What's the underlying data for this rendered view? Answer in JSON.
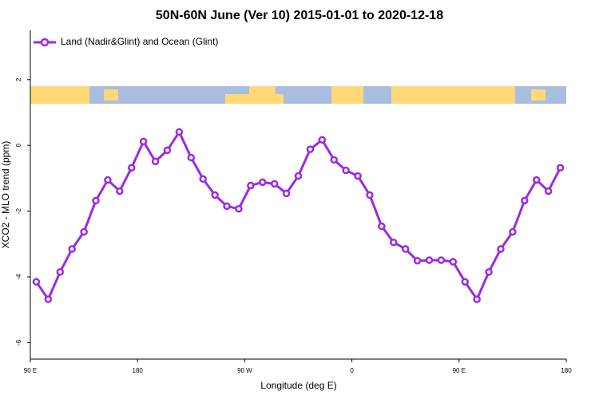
{
  "chart_data": {
    "type": "line",
    "title": "50N-60N June (Ver 10)   2015-01-01 to 2020-12-18",
    "x_label": "Longitude (deg E)",
    "y_label": "XCO2 - MLO trend (ppm)",
    "x": [
      95,
      105,
      115,
      125,
      135,
      145,
      155,
      165,
      175,
      185,
      195,
      205,
      215,
      225,
      235,
      245,
      255,
      265,
      275,
      285,
      295,
      305,
      315,
      325,
      335,
      345,
      355,
      365,
      375,
      385,
      395,
      405,
      415,
      425,
      435,
      445,
      455,
      465,
      475,
      485,
      495,
      505,
      515,
      525,
      535
    ],
    "series": [
      {
        "name": "Land (Nadir&Glint) and Ocean (Glint)",
        "color": "#9a2be2",
        "values": [
          -4.15,
          -4.68,
          -3.85,
          -3.15,
          -2.63,
          -1.68,
          -1.05,
          -1.39,
          -0.68,
          0.12,
          -0.49,
          -0.15,
          0.41,
          -0.37,
          -1.02,
          -1.51,
          -1.85,
          -1.93,
          -1.22,
          -1.12,
          -1.17,
          -1.46,
          -0.93,
          -0.12,
          0.17,
          -0.44,
          -0.76,
          -0.93,
          -1.51,
          -2.46,
          -2.95,
          -3.15,
          -3.51,
          -3.49,
          -3.49,
          -3.54,
          -4.15,
          -4.68,
          -3.85,
          -3.15,
          -2.63,
          -1.68,
          -1.05,
          -1.39,
          -0.68
        ]
      }
    ],
    "xlim": [
      90,
      540
    ],
    "xticks": [
      {
        "value": 90,
        "label": "90 E"
      },
      180,
      {
        "value": 270,
        "label": "90 W"
      },
      {
        "value": 360,
        "label": "0"
      },
      {
        "value": 450,
        "label": "90 E"
      },
      {
        "value": 540,
        "label": "180"
      }
    ],
    "ylim": [
      -6.5,
      3.5
    ],
    "yticks": [
      -6,
      -4,
      -2,
      0,
      2
    ],
    "legend": "top-left"
  }
}
